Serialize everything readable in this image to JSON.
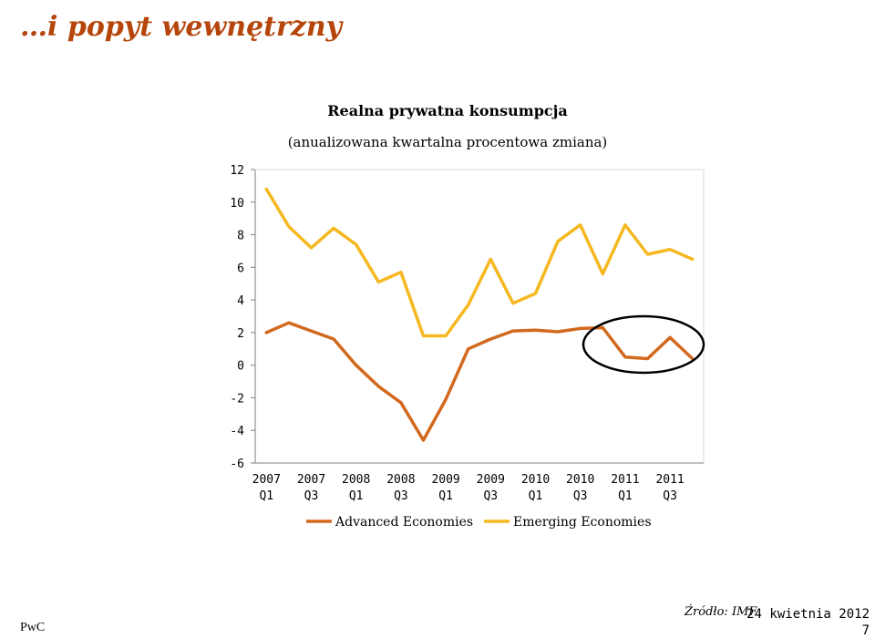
{
  "slide": {
    "title": "…i popyt wewnętrzny",
    "brand": "PwC",
    "source": "Źródło: IMF",
    "date": "24 kwietnia 2012",
    "page": "7"
  },
  "colors": {
    "advanced": "#d2691e",
    "emerging": "#f5b820",
    "axis": "#7f7f7f",
    "grid": "#d9d9d9",
    "title": "#b5450a",
    "highlight_ellipse": "#000000"
  },
  "chart_data": {
    "type": "line",
    "title": "Realna prywatna konsumpcja",
    "subtitle": "(anualizowana kwartalna procentowa zmiana)",
    "xlabel": "",
    "ylabel": "",
    "ylim": [
      -6,
      12
    ],
    "yticks": [
      12,
      10,
      8,
      6,
      4,
      2,
      0,
      -2,
      -4,
      -6
    ],
    "grid": false,
    "legend": "bottom",
    "x": [
      "2007 Q1",
      "2007 Q2",
      "2007 Q3",
      "2007 Q4",
      "2008 Q1",
      "2008 Q2",
      "2008 Q3",
      "2008 Q4",
      "2009 Q1",
      "2009 Q2",
      "2009 Q3",
      "2009 Q4",
      "2010 Q1",
      "2010 Q2",
      "2010 Q3",
      "2010 Q4",
      "2011 Q1",
      "2011 Q2",
      "2011 Q3",
      "2011 Q4"
    ],
    "tick_labels": [
      {
        "year": "2007",
        "q": "Q1"
      },
      {
        "year": "2007",
        "q": "Q3"
      },
      {
        "year": "2008",
        "q": "Q1"
      },
      {
        "year": "2008",
        "q": "Q3"
      },
      {
        "year": "2009",
        "q": "Q1"
      },
      {
        "year": "2009",
        "q": "Q3"
      },
      {
        "year": "2010",
        "q": "Q1"
      },
      {
        "year": "2010",
        "q": "Q3"
      },
      {
        "year": "2011",
        "q": "Q1"
      },
      {
        "year": "2011",
        "q": "Q3"
      }
    ],
    "series": [
      {
        "name": "Advanced Economies",
        "color": "#d2691e",
        "values": [
          2.0,
          2.6,
          2.1,
          1.6,
          0.0,
          -1.3,
          -2.3,
          -4.6,
          -2.1,
          1.0,
          1.6,
          2.1,
          2.15,
          2.05,
          2.25,
          2.3,
          0.5,
          0.4,
          1.7,
          0.4
        ]
      },
      {
        "name": "Emerging Economies",
        "color": "#f5b820",
        "values": [
          10.8,
          8.5,
          7.2,
          8.4,
          7.4,
          5.1,
          5.7,
          1.8,
          1.8,
          3.7,
          6.5,
          3.8,
          4.4,
          7.6,
          8.6,
          5.6,
          8.6,
          6.8,
          7.1,
          6.5
        ]
      }
    ]
  }
}
